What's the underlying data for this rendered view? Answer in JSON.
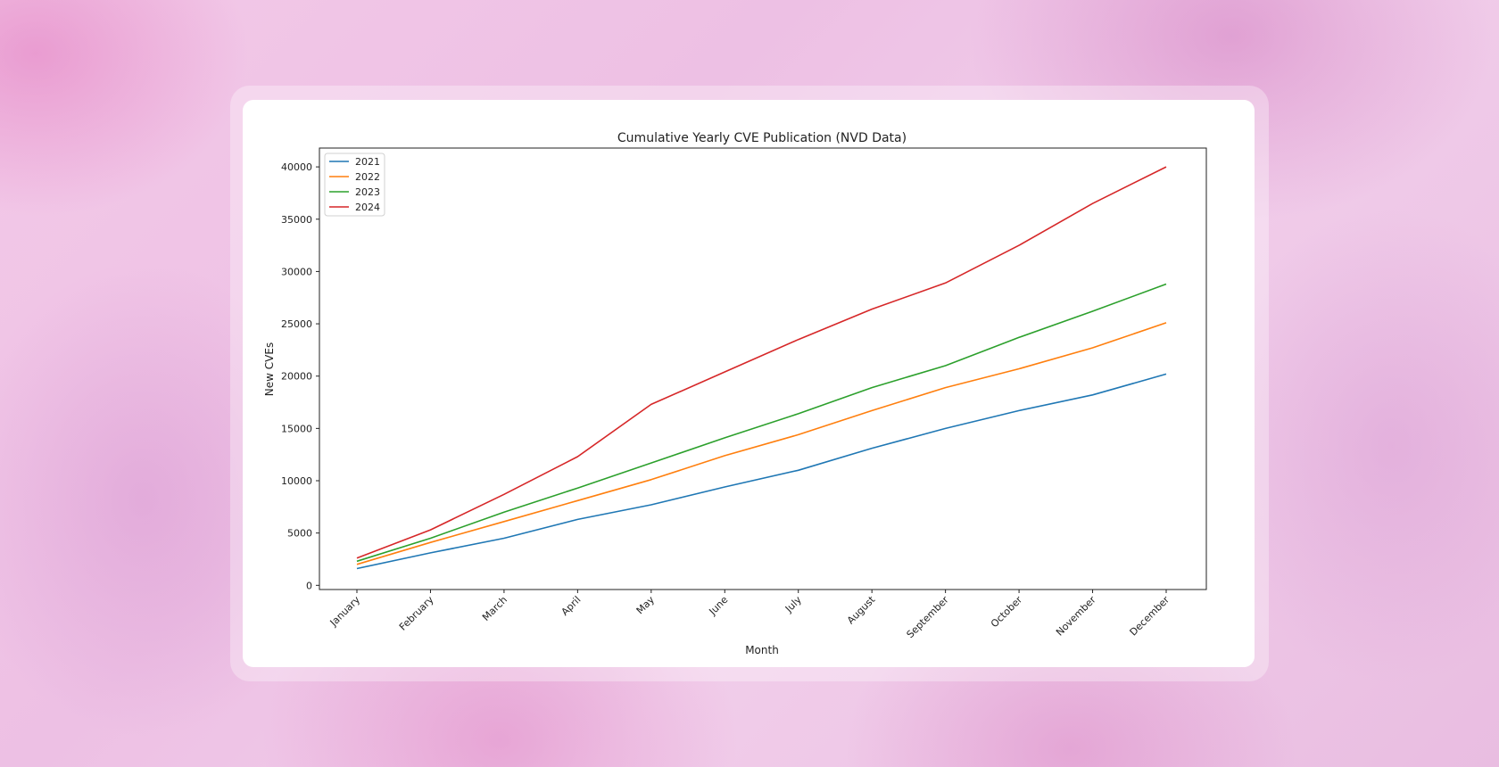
{
  "chart_data": {
    "type": "line",
    "title": "Cumulative Yearly CVE Publication (NVD Data)",
    "xlabel": "Month",
    "ylabel": "New CVEs",
    "categories": [
      "January",
      "February",
      "March",
      "April",
      "May",
      "June",
      "July",
      "August",
      "September",
      "October",
      "November",
      "December"
    ],
    "ylim": [
      -400,
      41800
    ],
    "yticks": [
      0,
      5000,
      10000,
      15000,
      20000,
      25000,
      30000,
      35000,
      40000
    ],
    "grid": false,
    "legend_position": "top-left",
    "series": [
      {
        "name": "2021",
        "color": "#1f77b4",
        "values": [
          1600,
          3100,
          4500,
          6300,
          7700,
          9400,
          11000,
          13100,
          15000,
          16700,
          18200,
          20200
        ]
      },
      {
        "name": "2022",
        "color": "#ff7f0e",
        "values": [
          2000,
          4100,
          6100,
          8100,
          10100,
          12400,
          14400,
          16700,
          18900,
          20700,
          22700,
          25100
        ]
      },
      {
        "name": "2023",
        "color": "#2ca02c",
        "values": [
          2300,
          4500,
          7000,
          9300,
          11700,
          14100,
          16400,
          18900,
          21000,
          23700,
          26200,
          28800
        ]
      },
      {
        "name": "2024",
        "color": "#d62728",
        "values": [
          2600,
          5300,
          8700,
          12300,
          17300,
          20400,
          23500,
          26400,
          28900,
          32500,
          36500,
          40000
        ]
      }
    ]
  }
}
